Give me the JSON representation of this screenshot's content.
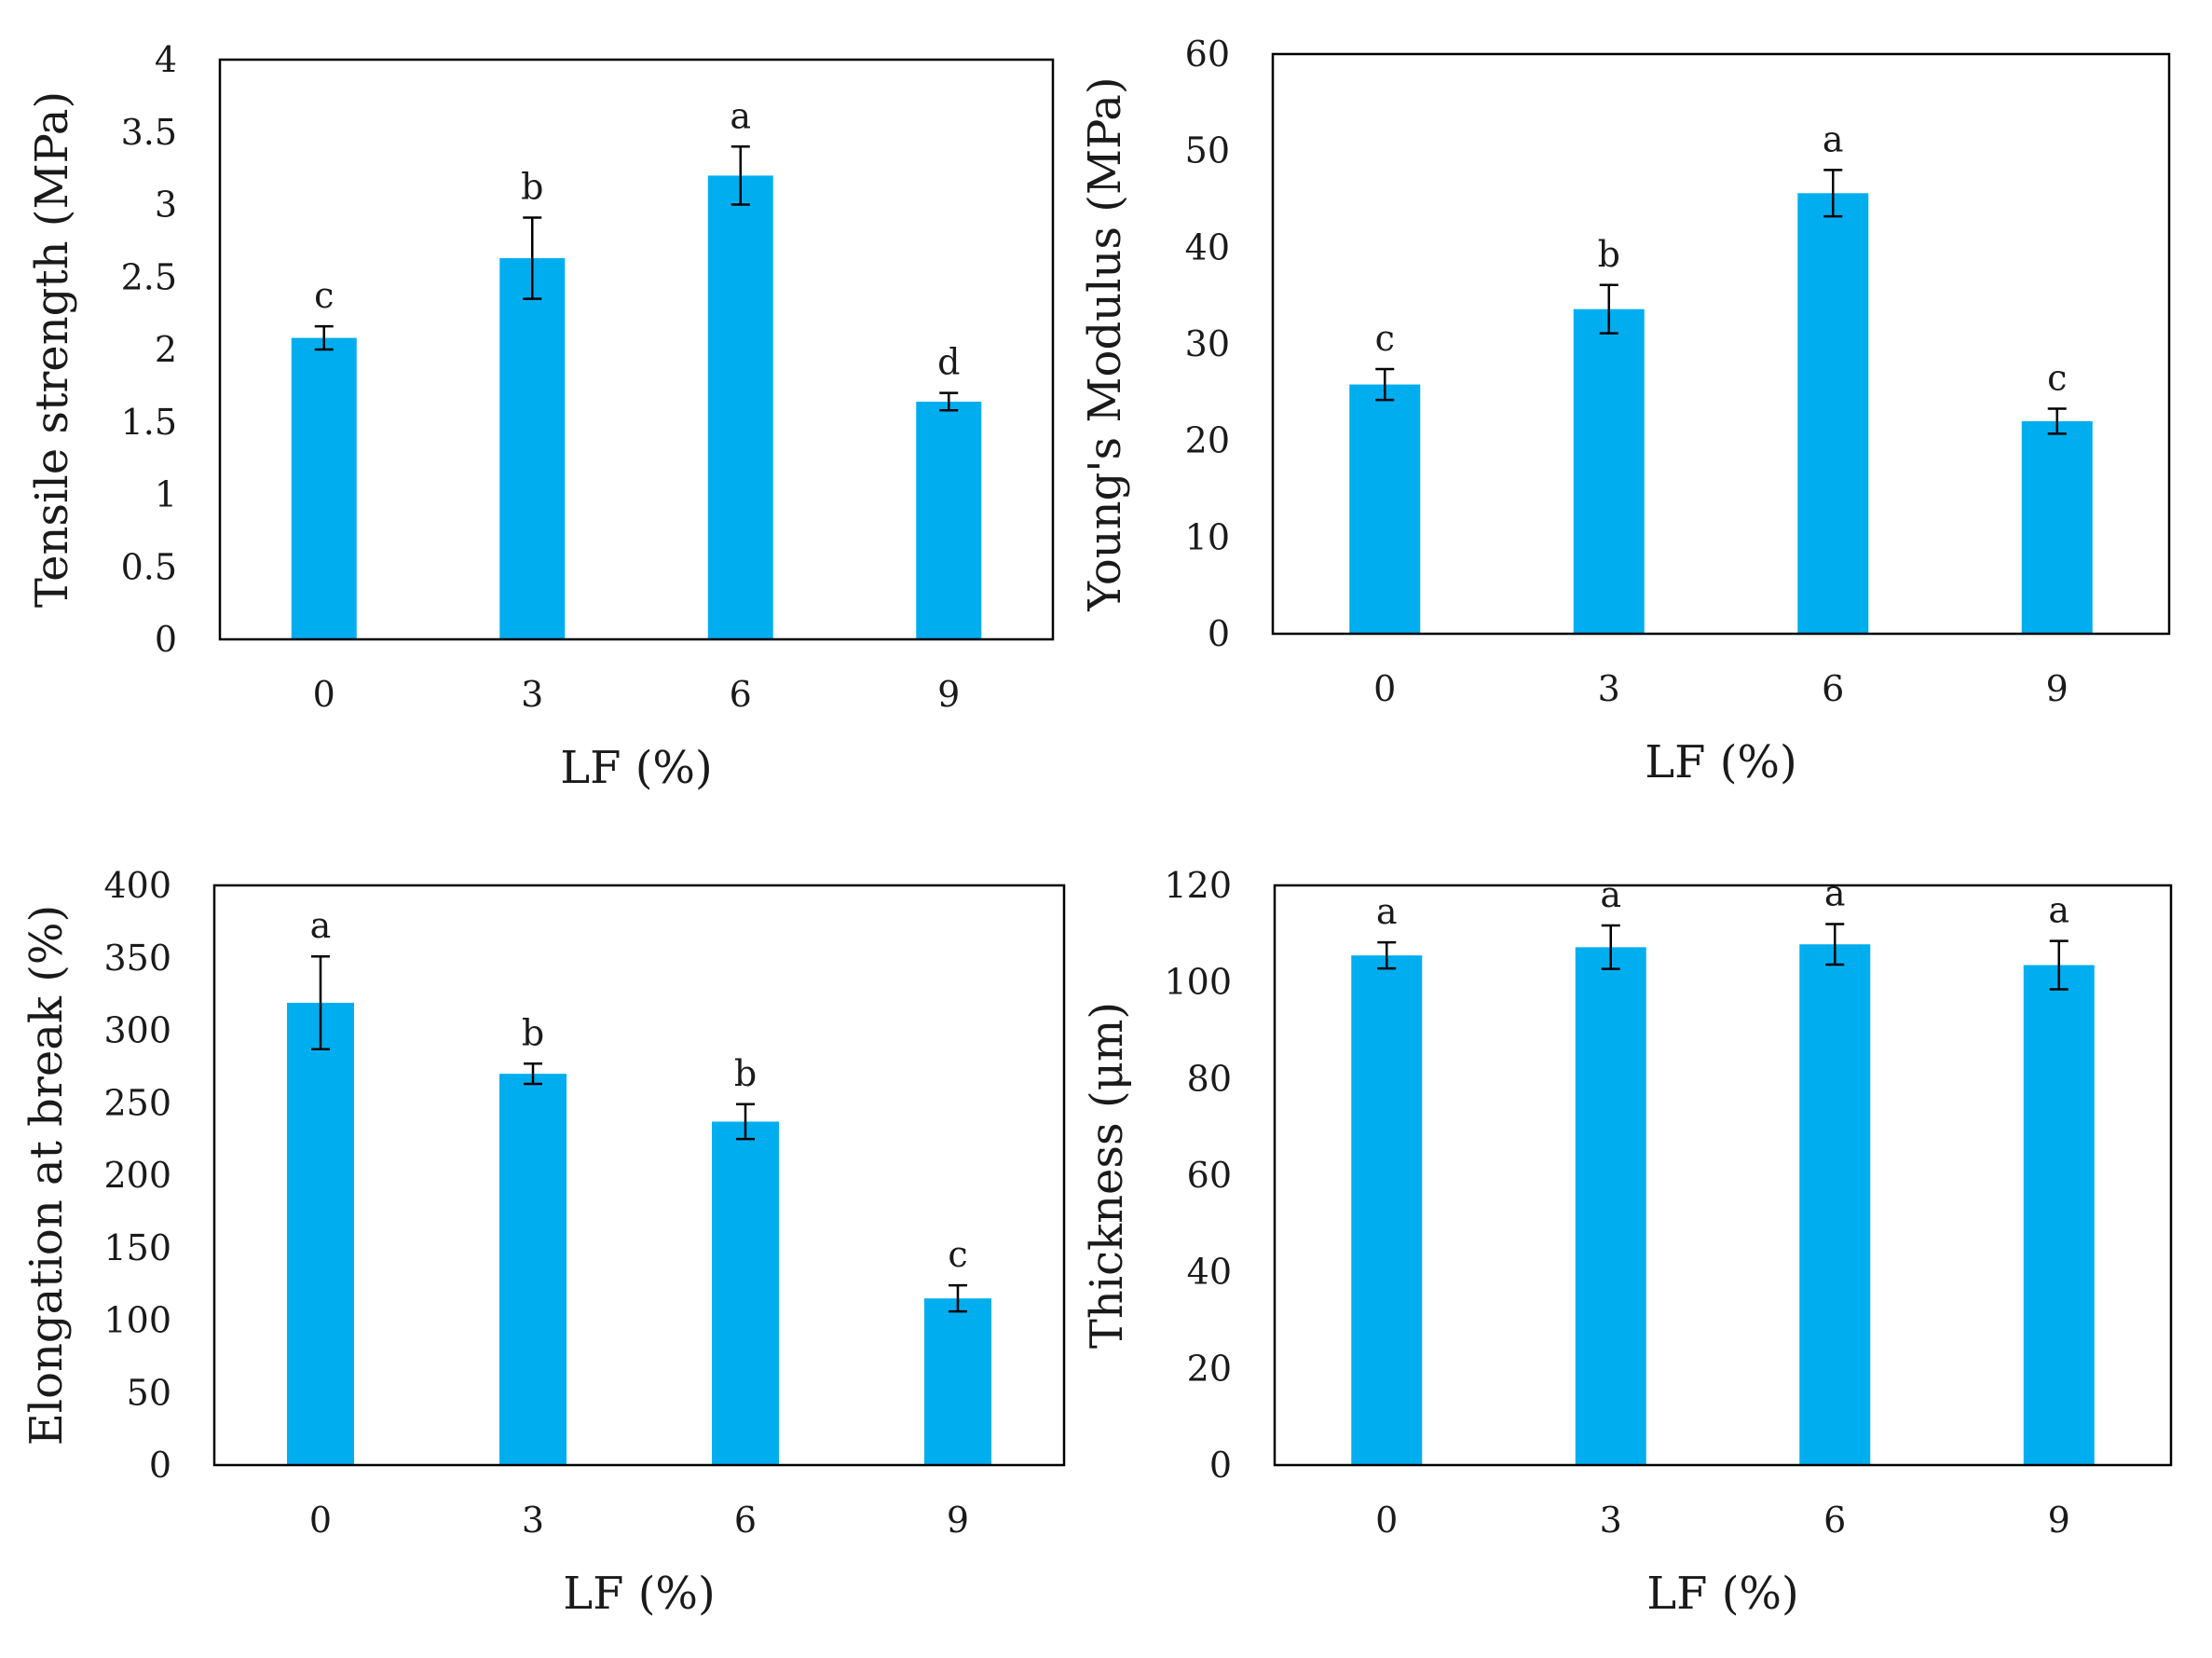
{
  "figure": {
    "bar_color": "#00aeef",
    "error_color": "#000000",
    "frame_color": "#000000"
  },
  "chart_data": [
    {
      "id": "tensile",
      "type": "bar",
      "categories": [
        "0",
        "3",
        "6",
        "9"
      ],
      "values": [
        2.08,
        2.63,
        3.2,
        1.64
      ],
      "errors": [
        0.08,
        0.28,
        0.2,
        0.06
      ],
      "letters": [
        "c",
        "b",
        "a",
        "d"
      ],
      "xlabel": "LF (%)",
      "ylabel": "Tensile strength (MPa)",
      "ylim": [
        0,
        4
      ],
      "yticks": [
        0,
        0.5,
        1,
        1.5,
        2,
        2.5,
        3,
        3.5,
        4
      ],
      "ytick_labels": [
        "0",
        "0.5",
        "1",
        "1.5",
        "2",
        "2.5",
        "3",
        "3.5",
        "4"
      ]
    },
    {
      "id": "youngs",
      "type": "bar",
      "categories": [
        "0",
        "3",
        "6",
        "9"
      ],
      "values": [
        25.8,
        33.6,
        45.6,
        22.0
      ],
      "errors": [
        1.6,
        2.5,
        2.4,
        1.3
      ],
      "letters": [
        "c",
        "b",
        "a",
        "c"
      ],
      "xlabel": "LF (%)",
      "ylabel": "Young's Modulus (MPa)",
      "ylim": [
        0,
        60
      ],
      "yticks": [
        0,
        10,
        20,
        30,
        40,
        50,
        60
      ],
      "ytick_labels": [
        "0",
        "10",
        "20",
        "30",
        "40",
        "50",
        "60"
      ]
    },
    {
      "id": "elongation",
      "type": "bar",
      "categories": [
        "0",
        "3",
        "6",
        "9"
      ],
      "values": [
        319,
        270,
        237,
        115
      ],
      "errors": [
        32,
        7,
        12,
        9
      ],
      "letters": [
        "a",
        "b",
        "b",
        "c"
      ],
      "xlabel": "LF (%)",
      "ylabel": "Elongation at break (%)",
      "ylim": [
        0,
        400
      ],
      "yticks": [
        0,
        50,
        100,
        150,
        200,
        250,
        300,
        350,
        400
      ],
      "ytick_labels": [
        "0",
        "50",
        "100",
        "150",
        "200",
        "250",
        "300",
        "350",
        "400"
      ]
    },
    {
      "id": "thickness",
      "type": "bar",
      "categories": [
        "0",
        "3",
        "6",
        "9"
      ],
      "values": [
        105.5,
        107.2,
        107.8,
        103.5
      ],
      "errors": [
        2.7,
        4.5,
        4.2,
        5.0
      ],
      "letters": [
        "a",
        "a",
        "a",
        "a"
      ],
      "xlabel": "LF (%)",
      "ylabel": "Thickness (μm)",
      "ylim": [
        0,
        120
      ],
      "yticks": [
        0,
        20,
        40,
        60,
        80,
        100,
        120
      ],
      "ytick_labels": [
        "0",
        "20",
        "40",
        "60",
        "80",
        "100",
        "120"
      ]
    }
  ]
}
